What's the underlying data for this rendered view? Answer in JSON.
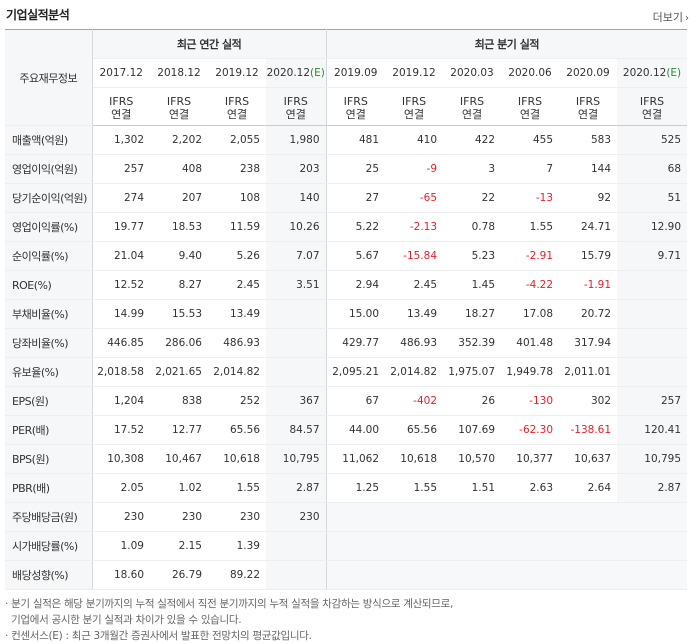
{
  "header": {
    "title": "기업실적분석",
    "more_label": "더보기"
  },
  "table": {
    "label_col_header": "주요재무정보",
    "groups": [
      {
        "label": "최근 연간 실적"
      },
      {
        "label": "최근 분기 실적"
      }
    ],
    "periods": [
      "2017.12",
      "2018.12",
      "2019.12",
      "2020.12(E)",
      "2019.09",
      "2019.12",
      "2020.03",
      "2020.06",
      "2020.09",
      "2020.12(E)"
    ],
    "ifrs_line1": "IFRS",
    "ifrs_line2": "연결",
    "rows": [
      {
        "label": "매출액(억원)",
        "values": [
          "1,302",
          "2,202",
          "2,055",
          "1,980",
          "481",
          "410",
          "422",
          "455",
          "583",
          "525"
        ]
      },
      {
        "label": "영업이익(억원)",
        "values": [
          "257",
          "408",
          "238",
          "203",
          "25",
          "-9",
          "3",
          "7",
          "144",
          "68"
        ]
      },
      {
        "label": "당기순이익(억원)",
        "values": [
          "274",
          "207",
          "108",
          "140",
          "27",
          "-65",
          "22",
          "-13",
          "92",
          "51"
        ]
      },
      {
        "label": "영업이익률(%)",
        "values": [
          "19.77",
          "18.53",
          "11.59",
          "10.26",
          "5.22",
          "-2.13",
          "0.78",
          "1.55",
          "24.71",
          "12.90"
        ]
      },
      {
        "label": "순이익률(%)",
        "values": [
          "21.04",
          "9.40",
          "5.26",
          "7.07",
          "5.67",
          "-15.84",
          "5.23",
          "-2.91",
          "15.79",
          "9.71"
        ]
      },
      {
        "label": "ROE(%)",
        "values": [
          "12.52",
          "8.27",
          "2.45",
          "3.51",
          "2.94",
          "2.45",
          "1.45",
          "-4.22",
          "-1.91",
          ""
        ]
      },
      {
        "label": "부채비율(%)",
        "values": [
          "14.99",
          "15.53",
          "13.49",
          "",
          "15.00",
          "13.49",
          "18.27",
          "17.08",
          "20.72",
          ""
        ]
      },
      {
        "label": "당좌비율(%)",
        "values": [
          "446.85",
          "286.06",
          "486.93",
          "",
          "429.77",
          "486.93",
          "352.39",
          "401.48",
          "317.94",
          ""
        ]
      },
      {
        "label": "유보율(%)",
        "values": [
          "2,018.58",
          "2,021.65",
          "2,014.82",
          "",
          "2,095.21",
          "2,014.82",
          "1,975.07",
          "1,949.78",
          "2,011.01",
          ""
        ]
      },
      {
        "label": "EPS(원)",
        "values": [
          "1,204",
          "838",
          "252",
          "367",
          "67",
          "-402",
          "26",
          "-130",
          "302",
          "257"
        ]
      },
      {
        "label": "PER(배)",
        "values": [
          "17.52",
          "12.77",
          "65.56",
          "84.57",
          "44.00",
          "65.56",
          "107.69",
          "-62.30",
          "-138.61",
          "120.41"
        ]
      },
      {
        "label": "BPS(원)",
        "values": [
          "10,308",
          "10,467",
          "10,618",
          "10,795",
          "11,062",
          "10,618",
          "10,570",
          "10,377",
          "10,637",
          "10,795"
        ]
      },
      {
        "label": "PBR(배)",
        "values": [
          "2.05",
          "1.02",
          "1.55",
          "2.87",
          "1.25",
          "1.55",
          "1.51",
          "2.63",
          "2.64",
          "2.87"
        ]
      },
      {
        "label": "주당배당금(원)",
        "values": [
          "230",
          "230",
          "230",
          "230",
          "",
          "",
          "",
          "",
          "",
          ""
        ]
      },
      {
        "label": "시가배당률(%)",
        "values": [
          "1.09",
          "2.15",
          "1.39",
          "",
          "",
          "",
          "",
          "",
          "",
          ""
        ]
      },
      {
        "label": "배당성향(%)",
        "values": [
          "18.60",
          "26.79",
          "89.22",
          "",
          "",
          "",
          "",
          "",
          "",
          ""
        ]
      }
    ]
  },
  "notes": [
    "· 분기 실적은 해당 분기까지의 누적 실적에서 직전 분기까지의 누적 실적을 차감하는 방식으로 계산되므로,",
    "  기업에서 공시한 분기 실적과 차이가 있을 수 있습니다.",
    "· 컨센서스(E) : 최근 3개월간 증권사에서 발표한 전망치의 평균값입니다."
  ],
  "colors": {
    "accent_orange": "#e8770e",
    "negative_red": "#e4202e",
    "estimate_green": "#2e8b37"
  }
}
